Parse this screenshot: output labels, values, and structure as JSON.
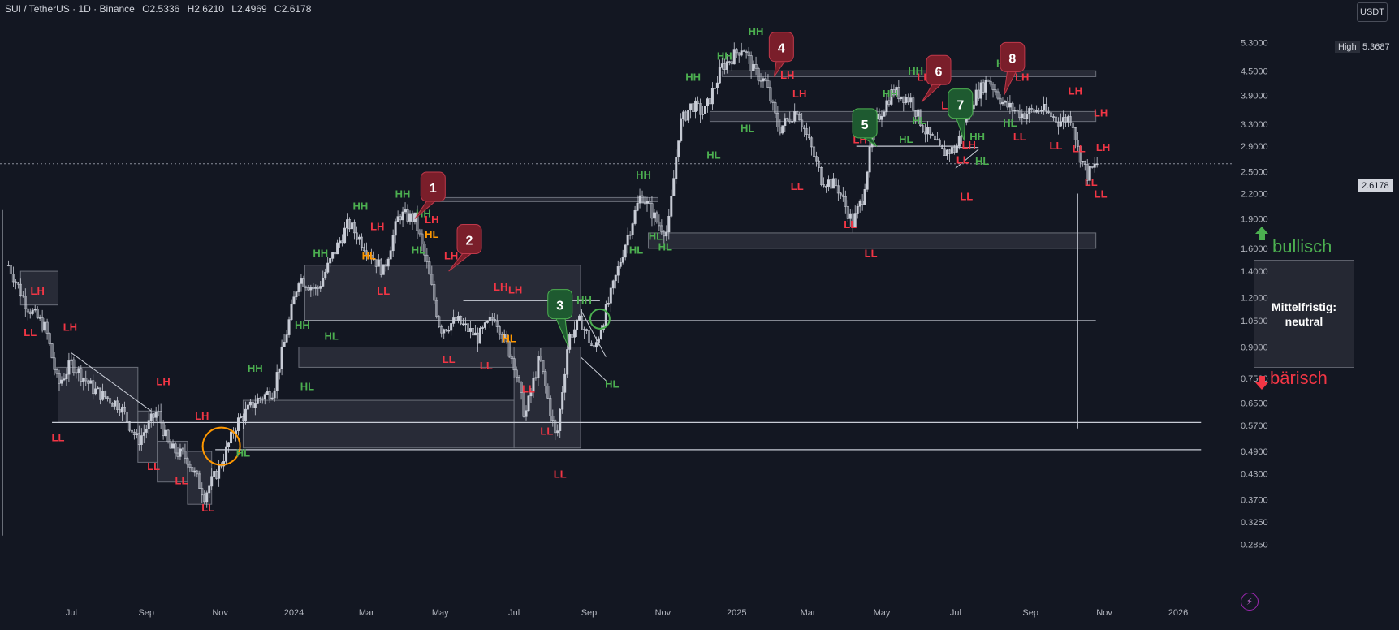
{
  "header": {
    "symbol": "SUI / TetherUS · 1D · Binance",
    "open": "O2.5336",
    "high": "H2.6210",
    "low": "L2.4969",
    "close": "C2.6178"
  },
  "currency_button": "USDT",
  "high_marker": {
    "label": "High",
    "value": "5.3687"
  },
  "current_price": "2.6178",
  "outlook": {
    "line1": "Mittelfristig:",
    "line2": "neutral",
    "bullish_label": "bullisch",
    "bearish_label": "bärisch"
  },
  "colors": {
    "background": "#131722",
    "candle": "#c8ccd6",
    "higher_label": "#4caf50",
    "lower_label": "#f23645",
    "orange_label": "#ff9800",
    "zone_fill": "#3a3d48",
    "callout_red": "#7a1e2a",
    "callout_green": "#1e5a30"
  },
  "chart_data": {
    "type": "candlestick",
    "title": "",
    "y_scale": "log",
    "ylim": [
      0.26,
      5.9
    ],
    "y_ticks": [
      5.3,
      4.5,
      3.9,
      3.3,
      2.9,
      2.5,
      2.2,
      1.9,
      1.6,
      1.4,
      1.2,
      1.05,
      0.9,
      0.75,
      0.65,
      0.57,
      0.49,
      0.43,
      0.37,
      0.325,
      0.285
    ],
    "y_tick_labels": [
      "5.3000",
      "4.5000",
      "3.9000",
      "3.3000",
      "2.9000",
      "2.5000",
      "2.2000",
      "1.9000",
      "1.6000",
      "1.4000",
      "1.2000",
      "1.0500",
      "0.9000",
      "0.7500",
      "0.6500",
      "0.5700",
      "0.4900",
      "0.4300",
      "0.3700",
      "0.3250",
      "0.2850"
    ],
    "x_range": [
      "2023-05-03",
      "2026-02-15"
    ],
    "x_ticks": [
      {
        "date": "2023-07-01",
        "label": "Jul"
      },
      {
        "date": "2023-09-01",
        "label": "Sep"
      },
      {
        "date": "2023-11-01",
        "label": "Nov"
      },
      {
        "date": "2024-01-01",
        "label": "2024"
      },
      {
        "date": "2024-03-01",
        "label": "Mar"
      },
      {
        "date": "2024-05-01",
        "label": "May"
      },
      {
        "date": "2024-07-01",
        "label": "Jul"
      },
      {
        "date": "2024-09-01",
        "label": "Sep"
      },
      {
        "date": "2024-11-01",
        "label": "Nov"
      },
      {
        "date": "2025-01-01",
        "label": "2025"
      },
      {
        "date": "2025-03-01",
        "label": "Mar"
      },
      {
        "date": "2025-05-01",
        "label": "May"
      },
      {
        "date": "2025-07-01",
        "label": "Jul"
      },
      {
        "date": "2025-09-01",
        "label": "Sep"
      },
      {
        "date": "2025-11-01",
        "label": "Nov"
      },
      {
        "date": "2026-01-01",
        "label": "2026"
      }
    ],
    "price_path": [
      [
        "2023-05-10",
        1.45
      ],
      [
        "2023-05-25",
        1.15
      ],
      [
        "2023-06-10",
        1.0
      ],
      [
        "2023-06-20",
        0.72
      ],
      [
        "2023-07-01",
        0.82
      ],
      [
        "2023-07-20",
        0.7
      ],
      [
        "2023-08-10",
        0.64
      ],
      [
        "2023-08-25",
        0.52
      ],
      [
        "2023-09-10",
        0.62
      ],
      [
        "2023-09-20",
        0.5
      ],
      [
        "2023-10-05",
        0.47
      ],
      [
        "2023-10-19",
        0.38
      ],
      [
        "2023-11-01",
        0.45
      ],
      [
        "2023-11-15",
        0.58
      ],
      [
        "2023-12-01",
        0.66
      ],
      [
        "2023-12-15",
        0.7
      ],
      [
        "2023-12-25",
        0.95
      ],
      [
        "2024-01-05",
        1.35
      ],
      [
        "2024-01-20",
        1.25
      ],
      [
        "2024-02-05",
        1.6
      ],
      [
        "2024-02-15",
        1.85
      ],
      [
        "2024-03-01",
        1.6
      ],
      [
        "2024-03-15",
        1.4
      ],
      [
        "2024-03-28",
        1.95
      ],
      [
        "2024-04-10",
        1.9
      ],
      [
        "2024-04-20",
        1.45
      ],
      [
        "2024-05-01",
        1.0
      ],
      [
        "2024-05-15",
        1.05
      ],
      [
        "2024-06-01",
        0.95
      ],
      [
        "2024-06-15",
        1.08
      ],
      [
        "2024-07-01",
        0.82
      ],
      [
        "2024-07-10",
        0.6
      ],
      [
        "2024-07-22",
        0.85
      ],
      [
        "2024-08-05",
        0.52
      ],
      [
        "2024-08-15",
        0.95
      ],
      [
        "2024-08-25",
        1.05
      ],
      [
        "2024-09-05",
        0.88
      ],
      [
        "2024-09-20",
        1.25
      ],
      [
        "2024-10-01",
        1.65
      ],
      [
        "2024-10-14",
        2.2
      ],
      [
        "2024-10-28",
        1.85
      ],
      [
        "2024-11-05",
        1.75
      ],
      [
        "2024-11-15",
        3.3
      ],
      [
        "2024-11-25",
        3.7
      ],
      [
        "2024-12-05",
        3.5
      ],
      [
        "2024-12-20",
        4.6
      ],
      [
        "2025-01-06",
        5.2
      ],
      [
        "2025-01-15",
        4.5
      ],
      [
        "2025-01-25",
        4.2
      ],
      [
        "2025-02-05",
        3.2
      ],
      [
        "2025-02-20",
        3.6
      ],
      [
        "2025-03-05",
        2.8
      ],
      [
        "2025-03-12",
        2.4
      ],
      [
        "2025-03-25",
        2.3
      ],
      [
        "2025-04-07",
        1.85
      ],
      [
        "2025-04-15",
        2.15
      ],
      [
        "2025-04-25",
        3.3
      ],
      [
        "2025-05-10",
        4.0
      ],
      [
        "2025-05-25",
        3.8
      ],
      [
        "2025-06-05",
        3.2
      ],
      [
        "2025-06-20",
        2.8
      ],
      [
        "2025-07-01",
        2.85
      ],
      [
        "2025-07-15",
        3.8
      ],
      [
        "2025-07-28",
        4.3
      ],
      [
        "2025-08-10",
        3.7
      ],
      [
        "2025-08-25",
        3.5
      ],
      [
        "2025-09-10",
        3.6
      ],
      [
        "2025-09-25",
        3.35
      ],
      [
        "2025-10-05",
        3.45
      ],
      [
        "2025-10-10",
        2.85
      ],
      [
        "2025-10-18",
        2.45
      ],
      [
        "2025-10-26",
        2.62
      ]
    ],
    "zones": [
      [
        "2023-05-20",
        "2023-06-20",
        1.15,
        1.4
      ],
      [
        "2023-06-20",
        "2023-08-25",
        0.58,
        0.8
      ],
      [
        "2023-08-25",
        "2023-09-10",
        0.46,
        0.62
      ],
      [
        "2023-09-10",
        "2023-10-05",
        0.41,
        0.52
      ],
      [
        "2023-10-05",
        "2023-10-25",
        0.36,
        0.49
      ],
      [
        "2023-11-20",
        "2024-07-01",
        0.5,
        0.66
      ],
      [
        "2024-01-05",
        "2024-07-01",
        0.8,
        0.9
      ],
      [
        "2024-01-10",
        "2024-08-25",
        1.05,
        1.45
      ],
      [
        "2024-07-01",
        "2024-08-25",
        0.5,
        0.9
      ],
      [
        "2024-04-20",
        "2024-10-28",
        2.1,
        2.15
      ],
      [
        "2024-10-20",
        "2025-10-25",
        1.6,
        1.75
      ],
      [
        "2024-12-20",
        "2025-10-25",
        4.35,
        4.5
      ],
      [
        "2024-12-10",
        "2025-10-25",
        3.35,
        3.55
      ]
    ],
    "levels": [
      {
        "price": 0.58,
        "from": "2023-06-15",
        "to": "2026-01-20"
      },
      {
        "price": 0.495,
        "from": "2023-10-28",
        "to": "2026-01-20"
      },
      {
        "price": 1.05,
        "from": "2024-01-10",
        "to": "2025-10-25"
      },
      {
        "price": 1.18,
        "from": "2024-05-20",
        "to": "2024-09-10"
      },
      {
        "price": 2.9,
        "from": "2025-04-10",
        "to": "2025-07-05"
      }
    ],
    "structure_labels": [
      {
        "text": "LH",
        "date": "2023-06-03",
        "price": 1.22,
        "type": "lower"
      },
      {
        "text": "LL",
        "date": "2023-05-28",
        "price": 0.96,
        "type": "lower"
      },
      {
        "text": "LH",
        "date": "2023-06-30",
        "price": 0.99,
        "type": "lower"
      },
      {
        "text": "LL",
        "date": "2023-06-20",
        "price": 0.52,
        "type": "lower"
      },
      {
        "text": "LH",
        "date": "2023-09-15",
        "price": 0.72,
        "type": "lower"
      },
      {
        "text": "LL",
        "date": "2023-09-07",
        "price": 0.44,
        "type": "lower"
      },
      {
        "text": "LH",
        "date": "2023-10-17",
        "price": 0.59,
        "type": "lower"
      },
      {
        "text": "LL",
        "date": "2023-09-30",
        "price": 0.405,
        "type": "lower"
      },
      {
        "text": "LL",
        "date": "2023-10-22",
        "price": 0.345,
        "type": "lower"
      },
      {
        "text": "HH",
        "date": "2023-11-30",
        "price": 0.78,
        "type": "higher"
      },
      {
        "text": "HL",
        "date": "2023-11-20",
        "price": 0.475,
        "type": "higher"
      },
      {
        "text": "HL",
        "date": "2024-01-12",
        "price": 0.7,
        "type": "higher"
      },
      {
        "text": "HH",
        "date": "2024-01-08",
        "price": 1.0,
        "type": "higher"
      },
      {
        "text": "HH",
        "date": "2024-01-23",
        "price": 1.52,
        "type": "higher"
      },
      {
        "text": "HL",
        "date": "2024-02-01",
        "price": 0.94,
        "type": "higher"
      },
      {
        "text": "HH",
        "date": "2024-02-25",
        "price": 2.0,
        "type": "higher"
      },
      {
        "text": "LH",
        "date": "2024-03-10",
        "price": 1.78,
        "type": "lower"
      },
      {
        "text": "HL",
        "date": "2024-03-03",
        "price": 1.5,
        "type": "orange"
      },
      {
        "text": "LL",
        "date": "2024-03-15",
        "price": 1.22,
        "type": "lower"
      },
      {
        "text": "HH",
        "date": "2024-03-31",
        "price": 2.15,
        "type": "higher"
      },
      {
        "text": "HH",
        "date": "2024-04-17",
        "price": 1.92,
        "type": "higher"
      },
      {
        "text": "LH",
        "date": "2024-04-24",
        "price": 1.85,
        "type": "lower"
      },
      {
        "text": "HL",
        "date": "2024-04-24",
        "price": 1.7,
        "type": "orange"
      },
      {
        "text": "HL",
        "date": "2024-04-13",
        "price": 1.55,
        "type": "higher"
      },
      {
        "text": "LH",
        "date": "2024-05-10",
        "price": 1.5,
        "type": "lower"
      },
      {
        "text": "LL",
        "date": "2024-05-08",
        "price": 0.82,
        "type": "lower"
      },
      {
        "text": "LL",
        "date": "2024-06-08",
        "price": 0.79,
        "type": "lower"
      },
      {
        "text": "LH",
        "date": "2024-06-20",
        "price": 1.25,
        "type": "lower"
      },
      {
        "text": "LH",
        "date": "2024-07-02",
        "price": 1.23,
        "type": "lower"
      },
      {
        "text": "HL",
        "date": "2024-06-27",
        "price": 0.925,
        "type": "orange"
      },
      {
        "text": "LL",
        "date": "2024-07-13",
        "price": 0.69,
        "type": "lower"
      },
      {
        "text": "LL",
        "date": "2024-07-28",
        "price": 0.54,
        "type": "lower"
      },
      {
        "text": "LL",
        "date": "2024-08-08",
        "price": 0.42,
        "type": "lower"
      },
      {
        "text": "HH",
        "date": "2024-08-28",
        "price": 1.16,
        "type": "higher"
      },
      {
        "text": "HL",
        "date": "2024-09-20",
        "price": 0.71,
        "type": "higher"
      },
      {
        "text": "HH",
        "date": "2024-10-16",
        "price": 2.4,
        "type": "higher"
      },
      {
        "text": "HL",
        "date": "2024-10-26",
        "price": 1.68,
        "type": "higher"
      },
      {
        "text": "HL",
        "date": "2024-11-03",
        "price": 1.58,
        "type": "higher"
      },
      {
        "text": "HL",
        "date": "2024-10-10",
        "price": 1.55,
        "type": "higher"
      },
      {
        "text": "HH",
        "date": "2024-11-26",
        "price": 4.25,
        "type": "higher"
      },
      {
        "text": "HL",
        "date": "2024-12-13",
        "price": 2.7,
        "type": "higher"
      },
      {
        "text": "HH",
        "date": "2024-12-22",
        "price": 4.8,
        "type": "higher"
      },
      {
        "text": "HL",
        "date": "2025-01-10",
        "price": 3.15,
        "type": "higher"
      },
      {
        "text": "HH",
        "date": "2025-01-17",
        "price": 5.55,
        "type": "higher"
      },
      {
        "text": "LH",
        "date": "2025-02-12",
        "price": 4.3,
        "type": "lower"
      },
      {
        "text": "LH",
        "date": "2025-02-22",
        "price": 3.85,
        "type": "lower"
      },
      {
        "text": "LL",
        "date": "2025-02-20",
        "price": 2.25,
        "type": "lower"
      },
      {
        "text": "LL",
        "date": "2025-04-05",
        "price": 1.8,
        "type": "lower"
      },
      {
        "text": "LH",
        "date": "2025-04-13",
        "price": 2.95,
        "type": "lower"
      },
      {
        "text": "LL",
        "date": "2025-04-22",
        "price": 1.52,
        "type": "lower"
      },
      {
        "text": "HH",
        "date": "2025-05-08",
        "price": 3.85,
        "type": "higher"
      },
      {
        "text": "HL",
        "date": "2025-05-21",
        "price": 2.96,
        "type": "higher"
      },
      {
        "text": "HH",
        "date": "2025-05-29",
        "price": 4.4,
        "type": "higher"
      },
      {
        "text": "LH",
        "date": "2025-06-05",
        "price": 4.25,
        "type": "lower"
      },
      {
        "text": "HL",
        "date": "2025-06-01",
        "price": 3.3,
        "type": "higher"
      },
      {
        "text": "LH",
        "date": "2025-06-25",
        "price": 3.6,
        "type": "lower"
      },
      {
        "text": "LH",
        "date": "2025-07-12",
        "price": 2.86,
        "type": "lower"
      },
      {
        "text": "LL",
        "date": "2025-07-07",
        "price": 2.62,
        "type": "lower"
      },
      {
        "text": "HH",
        "date": "2025-07-19",
        "price": 3.0,
        "type": "higher"
      },
      {
        "text": "HL",
        "date": "2025-07-23",
        "price": 2.6,
        "type": "higher"
      },
      {
        "text": "LL",
        "date": "2025-07-10",
        "price": 2.12,
        "type": "lower"
      },
      {
        "text": "HH",
        "date": "2025-08-10",
        "price": 4.6,
        "type": "higher"
      },
      {
        "text": "LH",
        "date": "2025-08-25",
        "price": 4.25,
        "type": "lower"
      },
      {
        "text": "HL",
        "date": "2025-08-15",
        "price": 3.25,
        "type": "higher"
      },
      {
        "text": "LL",
        "date": "2025-08-23",
        "price": 3.0,
        "type": "lower"
      },
      {
        "text": "LH",
        "date": "2025-10-08",
        "price": 3.92,
        "type": "lower"
      },
      {
        "text": "LL",
        "date": "2025-09-22",
        "price": 2.85,
        "type": "lower"
      },
      {
        "text": "LL",
        "date": "2025-10-11",
        "price": 2.8,
        "type": "lower"
      },
      {
        "text": "LH",
        "date": "2025-10-29",
        "price": 3.45,
        "type": "lower"
      },
      {
        "text": "LH",
        "date": "2025-10-31",
        "price": 2.82,
        "type": "lower"
      },
      {
        "text": "LL",
        "date": "2025-10-21",
        "price": 2.3,
        "type": "lower"
      },
      {
        "text": "LL",
        "date": "2025-10-29",
        "price": 2.15,
        "type": "lower"
      }
    ],
    "callouts": [
      {
        "text": "1",
        "date": "2024-04-25",
        "price": 2.28,
        "tip_date": "2024-04-10",
        "tip_price": 1.9,
        "style": "red"
      },
      {
        "text": "2",
        "date": "2024-05-25",
        "price": 1.68,
        "tip_date": "2024-05-08",
        "tip_price": 1.4,
        "style": "red"
      },
      {
        "text": "3",
        "date": "2024-08-08",
        "price": 1.15,
        "tip_date": "2024-08-15",
        "tip_price": 0.9,
        "style": "green"
      },
      {
        "text": "4",
        "date": "2025-02-07",
        "price": 5.15,
        "tip_date": "2025-02-01",
        "tip_price": 4.35,
        "style": "red"
      },
      {
        "text": "5",
        "date": "2025-04-17",
        "price": 3.3,
        "tip_date": "2025-04-27",
        "tip_price": 2.9,
        "style": "green"
      },
      {
        "text": "6",
        "date": "2025-06-17",
        "price": 4.5,
        "tip_date": "2025-06-03",
        "tip_price": 3.75,
        "style": "red"
      },
      {
        "text": "7",
        "date": "2025-07-05",
        "price": 3.7,
        "tip_date": "2025-07-08",
        "tip_price": 3.0,
        "style": "green"
      },
      {
        "text": "8",
        "date": "2025-08-17",
        "price": 4.85,
        "tip_date": "2025-08-10",
        "tip_price": 3.9,
        "style": "red"
      }
    ],
    "circles": [
      {
        "date": "2023-11-02",
        "price": 0.505,
        "style": "orange"
      },
      {
        "date": "2024-09-10",
        "price": 1.06,
        "style": "green"
      }
    ],
    "wedges": [
      {
        "from": "2023-07-01",
        "from_price": 0.87,
        "to": "2023-09-05",
        "to_price": 0.62
      },
      {
        "from": "2024-08-25",
        "from_price": 1.12,
        "to": "2024-09-15",
        "to_price": 0.85
      },
      {
        "from": "2024-08-25",
        "from_price": 0.85,
        "to": "2024-09-15",
        "to_price": 0.74
      },
      {
        "from": "2025-07-01",
        "from_price": 2.88,
        "to": "2025-07-20",
        "to_price": 2.88
      },
      {
        "from": "2025-07-01",
        "from_price": 2.55,
        "to": "2025-07-20",
        "to_price": 2.85
      }
    ],
    "vlines": [
      {
        "date": "2023-05-05",
        "from": 0.3,
        "to": 2.0
      },
      {
        "date": "2025-10-10",
        "from": 0.56,
        "to": 2.2
      }
    ]
  }
}
